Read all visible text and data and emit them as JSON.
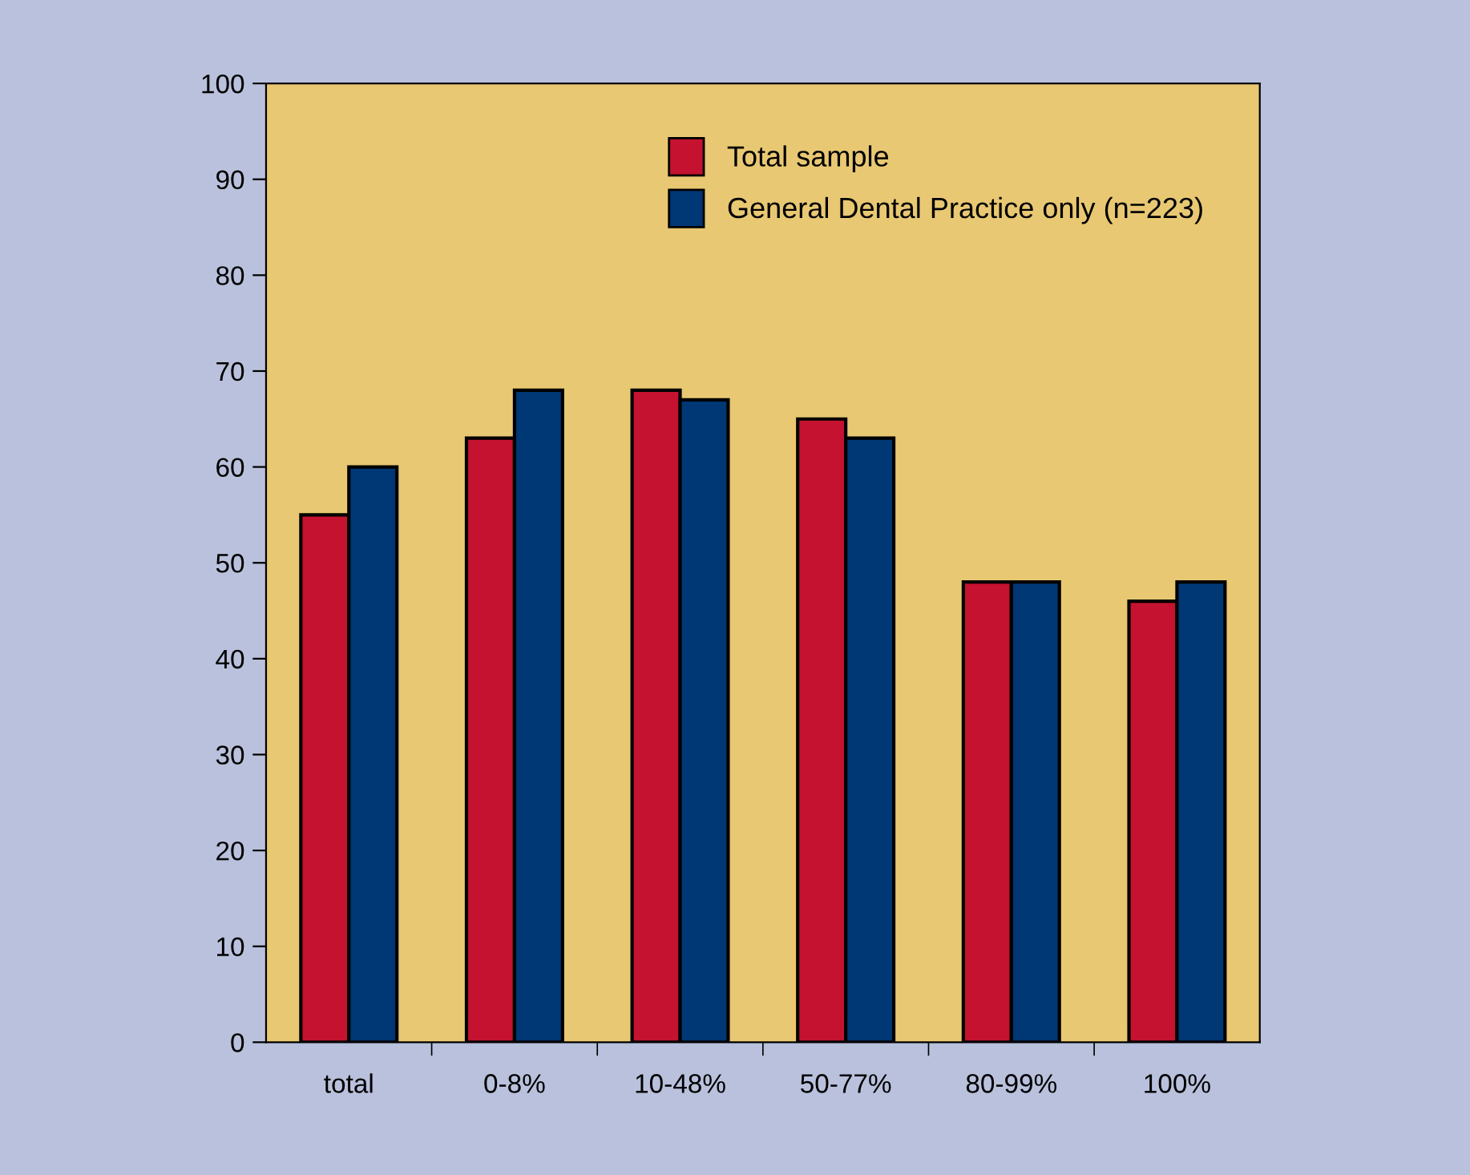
{
  "chart_data": {
    "type": "bar",
    "categories": [
      "total",
      "0-8%",
      "10-48%",
      "50-77%",
      "80-99%",
      "100%"
    ],
    "series": [
      {
        "name": "Total sample",
        "color": "#c41230",
        "values": [
          55,
          63,
          68,
          65,
          48,
          46
        ]
      },
      {
        "name": "General Dental Practice only (n=223)",
        "color": "#003775",
        "values": [
          60,
          68,
          67,
          63,
          48,
          48
        ]
      }
    ],
    "ylim": [
      0,
      100
    ],
    "yticks": [
      0,
      10,
      20,
      30,
      40,
      50,
      60,
      70,
      80,
      90,
      100
    ],
    "grid": false,
    "legend": "top right"
  }
}
